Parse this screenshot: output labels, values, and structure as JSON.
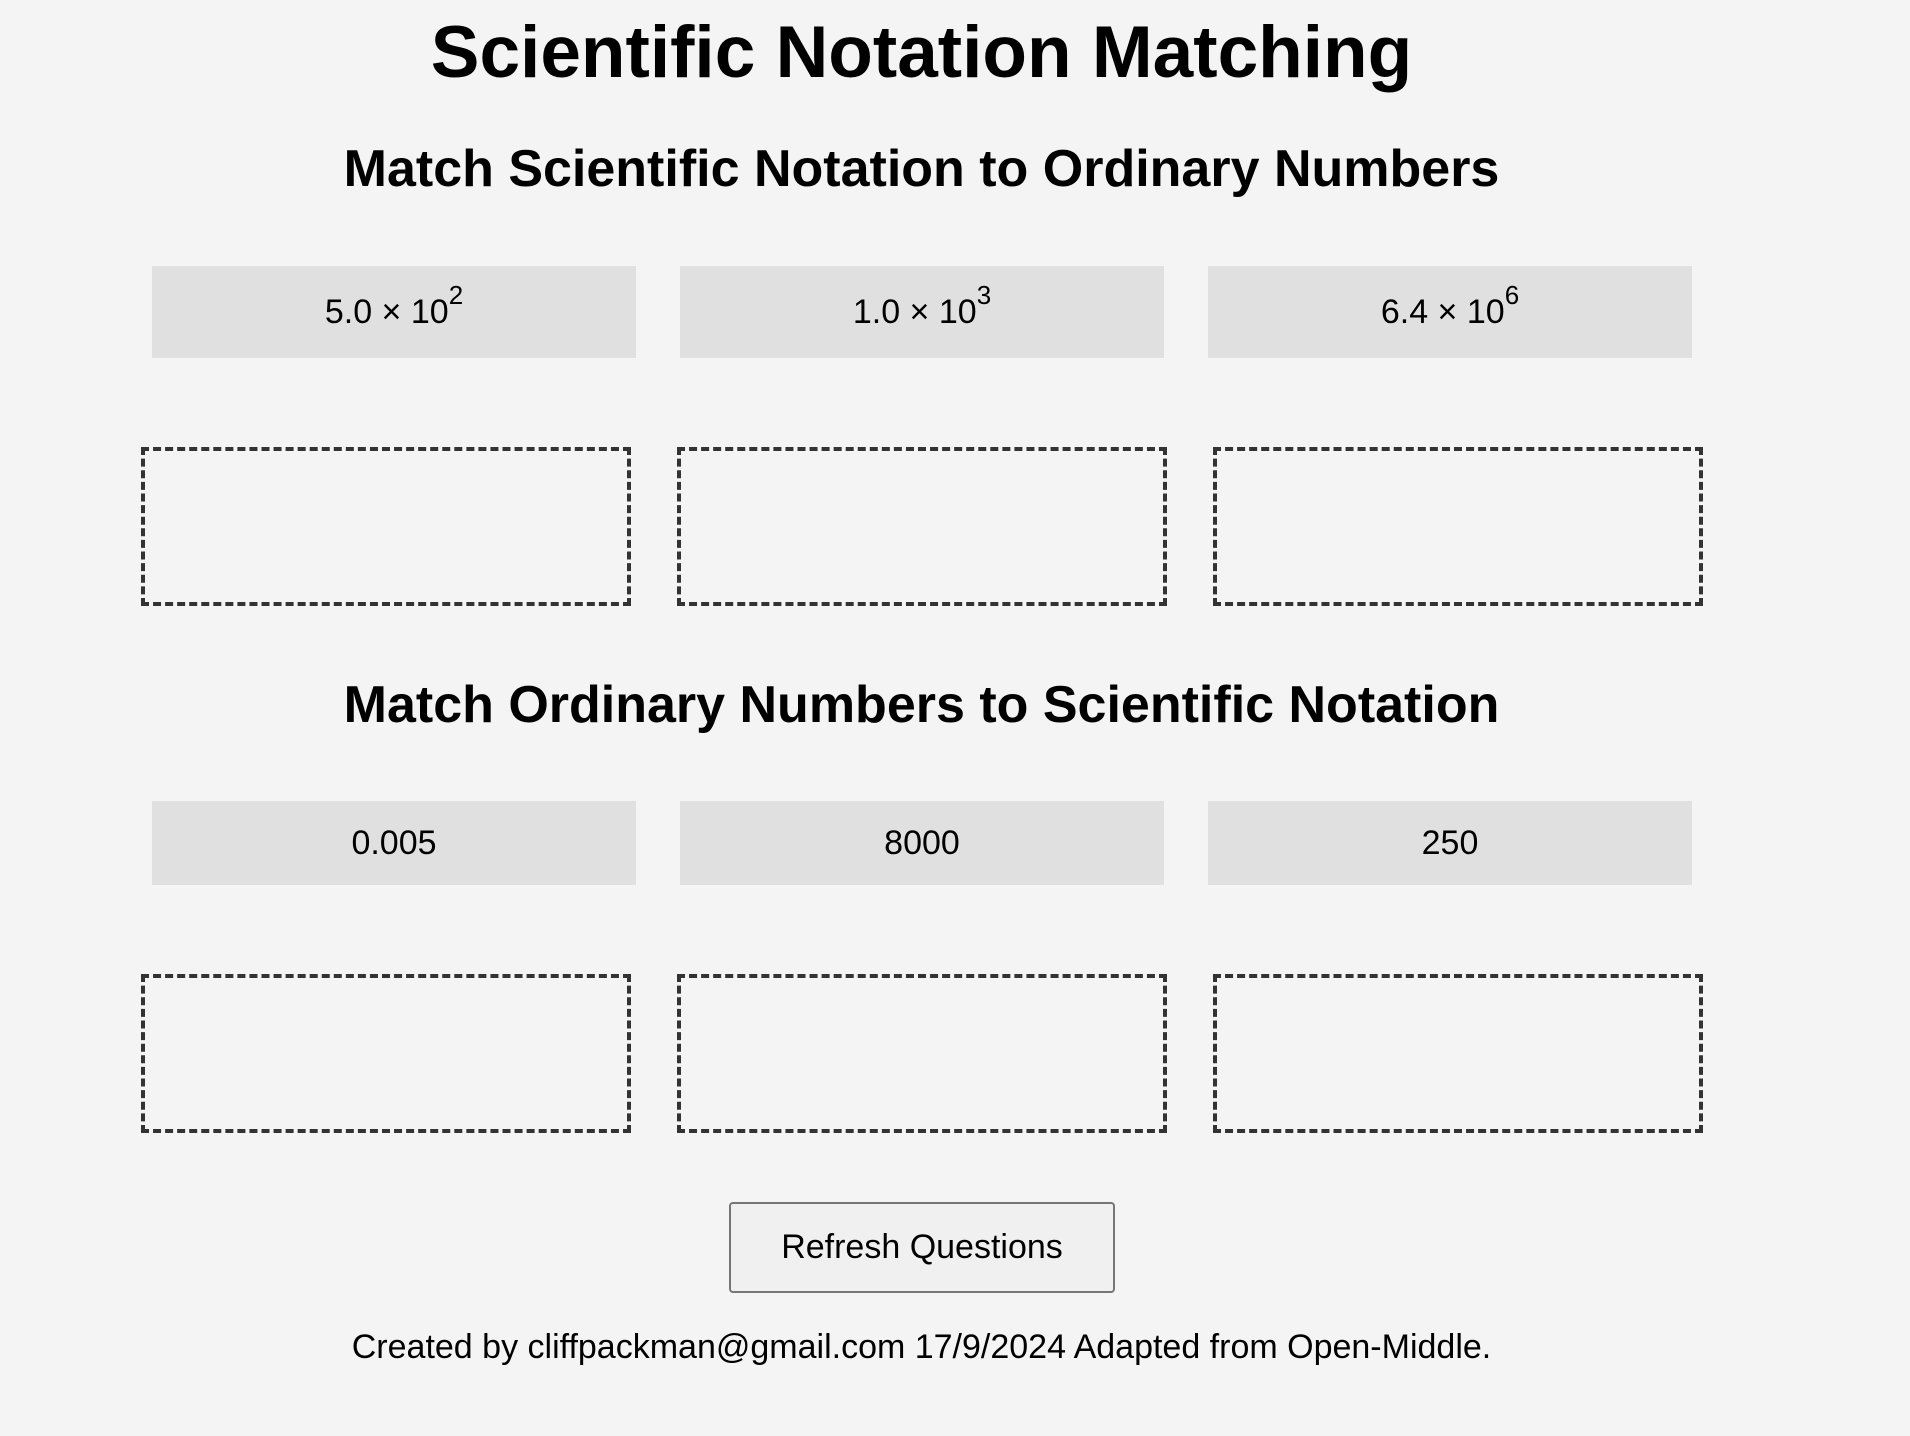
{
  "page": {
    "title": "Scientific Notation Matching"
  },
  "section1": {
    "title": "Match Scientific Notation to Ordinary Numbers",
    "cards": [
      {
        "mantissa": "5.0 × 10",
        "exponent": "2"
      },
      {
        "mantissa": "1.0 × 10",
        "exponent": "3"
      },
      {
        "mantissa": "6.4 × 10",
        "exponent": "6"
      }
    ],
    "drop_zones": [
      "",
      "",
      ""
    ]
  },
  "section2": {
    "title": "Match Ordinary Numbers to Scientific Notation",
    "cards": [
      {
        "value": "0.005"
      },
      {
        "value": "8000"
      },
      {
        "value": "250"
      }
    ],
    "drop_zones": [
      "",
      "",
      ""
    ]
  },
  "controls": {
    "refresh_label": "Refresh Questions"
  },
  "footer": {
    "text": "Created by cliffpackman@gmail.com 17/9/2024 Adapted from Open-Middle."
  },
  "colors": {
    "background": "#f4f4f4",
    "card_background": "#e0e0e0",
    "drop_border": "#333333",
    "button_background": "#f0f0f0"
  }
}
